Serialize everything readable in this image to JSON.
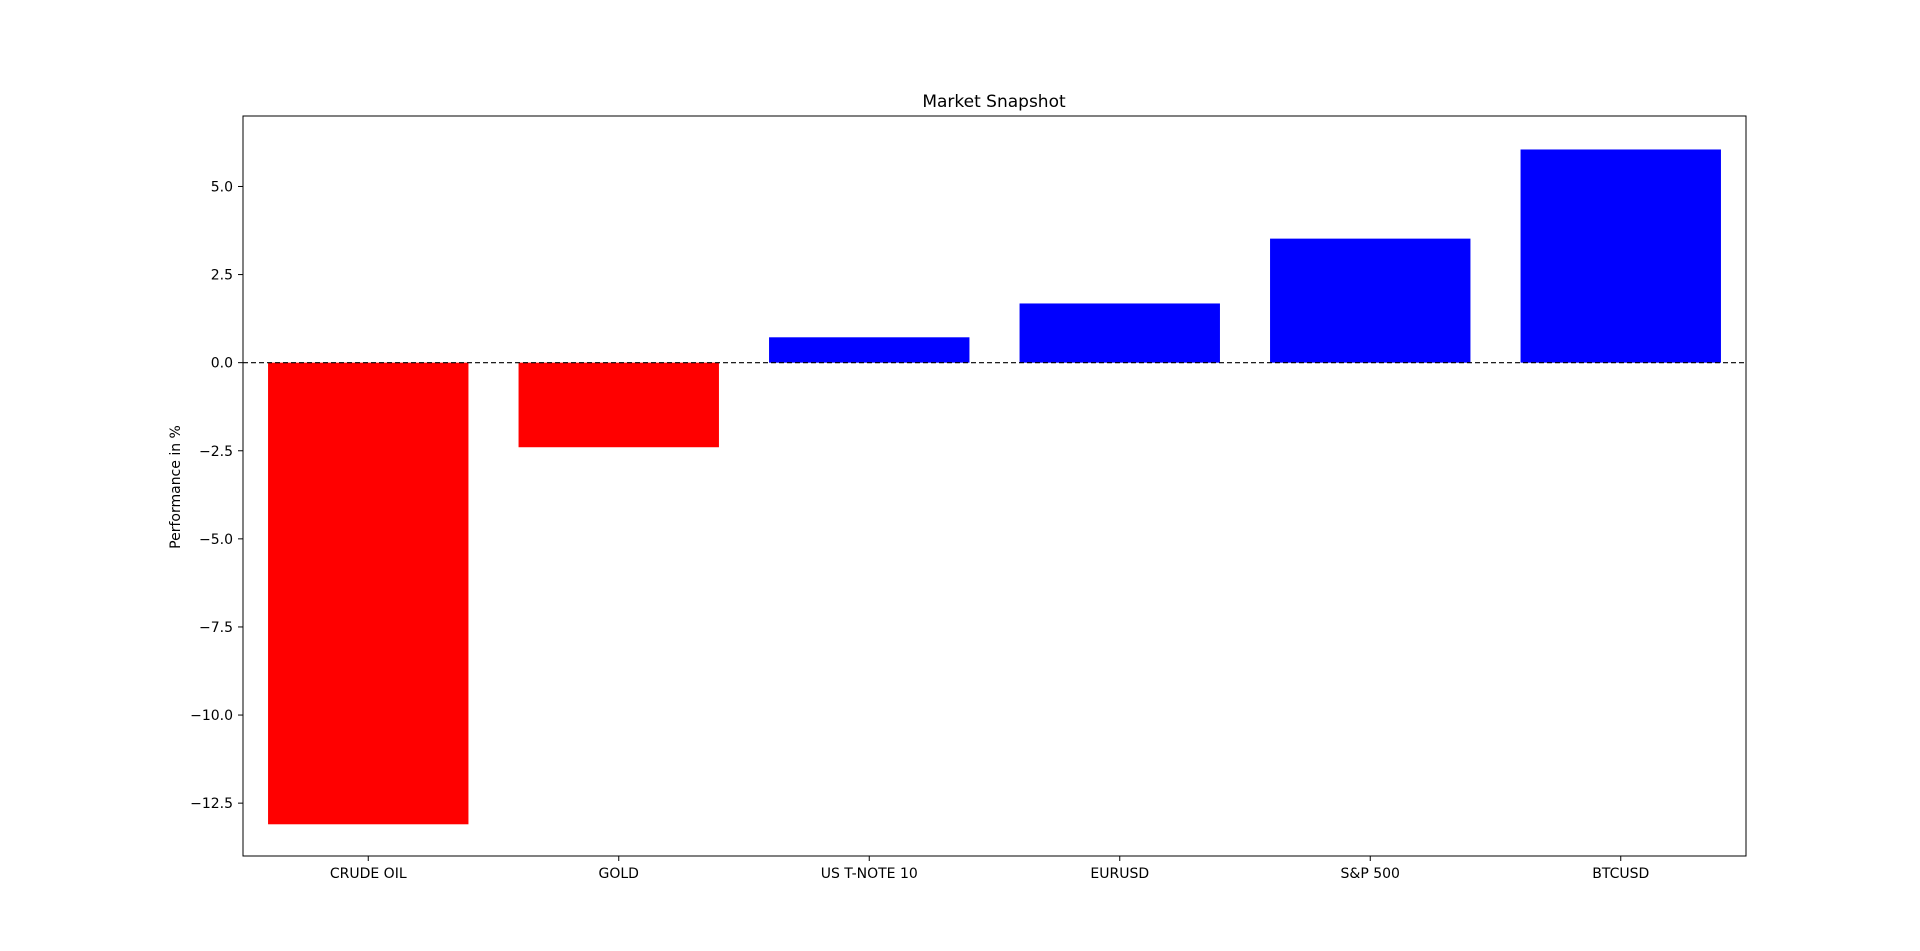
{
  "chart_data": {
    "type": "bar",
    "title": "Market Snapshot",
    "xlabel": "",
    "ylabel": "Performance in %",
    "categories": [
      "CRUDE OIL",
      "GOLD",
      "US T-NOTE 10",
      "EURUSD",
      "S&P 500",
      "BTCUSD"
    ],
    "values": [
      -13.1,
      -2.4,
      0.72,
      1.68,
      3.52,
      6.05
    ],
    "bar_colors": [
      "#ff0000",
      "#ff0000",
      "#0000ff",
      "#0000ff",
      "#0000ff",
      "#0000ff"
    ],
    "ylim": [
      -14.0,
      7.0
    ],
    "yticks": [
      5.0,
      2.5,
      0.0,
      -2.5,
      -5.0,
      -7.5,
      -10.0,
      -12.5
    ],
    "ytick_labels": [
      "5.0",
      "2.5",
      "0.0",
      "−2.5",
      "−5.0",
      "−7.5",
      "−10.0",
      "−12.5"
    ],
    "zero_line": {
      "style": "dashed",
      "color": "#000000"
    },
    "grid": false,
    "legend": "none"
  }
}
